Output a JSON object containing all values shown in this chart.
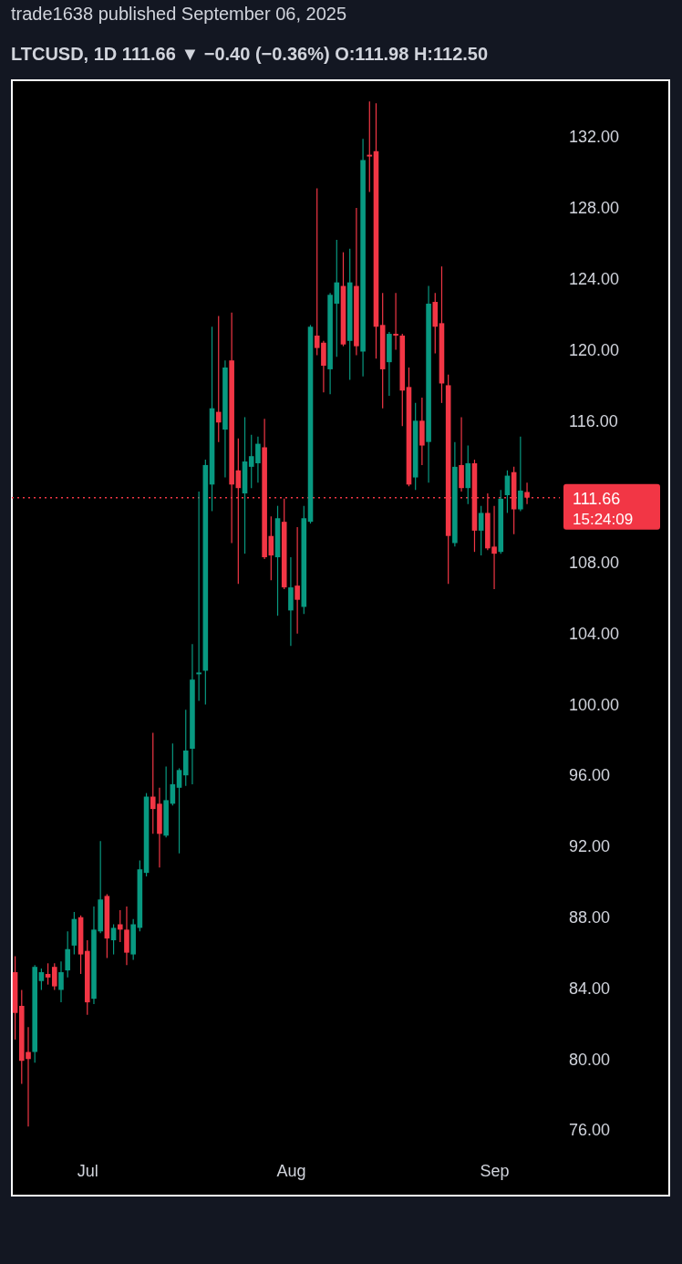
{
  "chart_data": {
    "type": "candlestick",
    "title": "trade1638 published September 06, 2025",
    "subtitle": "LTCUSD, 1D  111.66 ▼ −0.40 (−0.36%) O:111.98 H:112.50",
    "x": [
      "2025-06-20",
      "2025-06-21",
      "2025-06-22",
      "2025-06-23",
      "2025-06-24",
      "2025-06-25",
      "2025-06-26",
      "2025-06-27",
      "2025-06-28",
      "2025-06-29",
      "2025-06-30",
      "2025-07-01",
      "2025-07-02",
      "2025-07-03",
      "2025-07-04",
      "2025-07-05",
      "2025-07-06",
      "2025-07-07",
      "2025-07-08",
      "2025-07-09",
      "2025-07-10",
      "2025-07-11",
      "2025-07-12",
      "2025-07-13",
      "2025-07-14",
      "2025-07-15",
      "2025-07-16",
      "2025-07-17",
      "2025-07-18",
      "2025-07-19",
      "2025-07-20",
      "2025-07-21",
      "2025-07-22",
      "2025-07-23",
      "2025-07-24",
      "2025-07-25",
      "2025-07-26",
      "2025-07-27",
      "2025-07-28",
      "2025-07-29",
      "2025-07-30",
      "2025-07-31",
      "2025-08-01",
      "2025-08-02",
      "2025-08-03",
      "2025-08-04",
      "2025-08-05",
      "2025-08-06",
      "2025-08-07",
      "2025-08-08",
      "2025-08-09",
      "2025-08-10",
      "2025-08-11",
      "2025-08-12",
      "2025-08-13",
      "2025-08-14",
      "2025-08-15",
      "2025-08-16",
      "2025-08-17",
      "2025-08-18",
      "2025-08-19",
      "2025-08-20",
      "2025-08-21",
      "2025-08-22",
      "2025-08-23",
      "2025-08-24",
      "2025-08-25",
      "2025-08-26",
      "2025-08-27",
      "2025-08-28",
      "2025-08-29",
      "2025-08-30",
      "2025-08-31",
      "2025-09-01",
      "2025-09-02",
      "2025-09-03",
      "2025-09-04",
      "2025-09-05",
      "2025-09-06"
    ],
    "ohlc": [
      [
        84.9,
        85.8,
        81.1,
        82.6
      ],
      [
        83.0,
        83.9,
        78.6,
        79.9
      ],
      [
        80.4,
        81.8,
        76.2,
        80.0
      ],
      [
        80.4,
        85.3,
        79.8,
        85.2
      ],
      [
        84.4,
        85.1,
        83.9,
        84.9
      ],
      [
        84.8,
        85.4,
        84.2,
        84.6
      ],
      [
        85.2,
        85.4,
        83.9,
        84.1
      ],
      [
        83.9,
        85.5,
        83.2,
        84.9
      ],
      [
        85.0,
        87.2,
        84.6,
        86.2
      ],
      [
        86.4,
        88.3,
        85.9,
        87.9
      ],
      [
        88.0,
        88.1,
        84.8,
        85.9
      ],
      [
        86.1,
        86.7,
        82.5,
        83.2
      ],
      [
        83.4,
        88.6,
        83.1,
        87.3
      ],
      [
        87.2,
        92.3,
        87.1,
        89.0
      ],
      [
        89.2,
        89.3,
        85.7,
        86.8
      ],
      [
        86.7,
        87.6,
        85.9,
        87.4
      ],
      [
        87.6,
        88.4,
        86.6,
        87.3
      ],
      [
        87.3,
        88.6,
        85.3,
        86.0
      ],
      [
        85.9,
        87.9,
        85.6,
        87.6
      ],
      [
        87.4,
        91.2,
        87.2,
        90.7
      ],
      [
        90.5,
        95.0,
        90.3,
        94.8
      ],
      [
        94.8,
        98.4,
        92.7,
        94.1
      ],
      [
        94.4,
        95.3,
        90.8,
        92.7
      ],
      [
        92.6,
        96.5,
        92.5,
        94.6
      ],
      [
        94.4,
        97.8,
        94.3,
        95.5
      ],
      [
        95.3,
        96.4,
        91.6,
        96.3
      ],
      [
        96.0,
        99.7,
        95.4,
        97.4
      ],
      [
        97.5,
        103.4,
        95.5,
        101.4
      ],
      [
        101.7,
        112.0,
        100.2,
        101.8
      ],
      [
        101.9,
        113.8,
        100.0,
        113.5
      ],
      [
        112.4,
        121.3,
        110.9,
        116.7
      ],
      [
        116.5,
        121.9,
        114.8,
        115.9
      ],
      [
        115.5,
        119.4,
        112.8,
        119.0
      ],
      [
        119.4,
        122.1,
        109.1,
        112.4
      ],
      [
        113.2,
        115.0,
        106.8,
        112.2
      ],
      [
        111.9,
        116.2,
        108.5,
        113.7
      ],
      [
        113.4,
        115.2,
        112.2,
        114.0
      ],
      [
        113.6,
        115.1,
        112.5,
        114.7
      ],
      [
        114.5,
        116.1,
        108.2,
        108.3
      ],
      [
        109.5,
        110.6,
        107.0,
        108.4
      ],
      [
        108.3,
        111.2,
        105.0,
        110.5
      ],
      [
        110.3,
        111.6,
        106.5,
        106.6
      ],
      [
        105.3,
        108.3,
        103.3,
        106.6
      ],
      [
        106.7,
        110.0,
        104.0,
        105.9
      ],
      [
        105.5,
        111.2,
        105.1,
        110.5
      ],
      [
        110.3,
        121.4,
        110.2,
        121.3
      ],
      [
        120.8,
        129.1,
        119.7,
        120.1
      ],
      [
        120.4,
        120.5,
        117.6,
        119.1
      ],
      [
        118.9,
        123.2,
        117.5,
        123.1
      ],
      [
        122.6,
        126.2,
        119.6,
        123.8
      ],
      [
        123.6,
        125.5,
        120.2,
        120.3
      ],
      [
        120.5,
        125.7,
        118.3,
        123.8
      ],
      [
        123.6,
        128.0,
        119.7,
        120.2
      ],
      [
        119.9,
        131.9,
        118.5,
        130.7
      ],
      [
        131.0,
        134.0,
        128.9,
        130.9
      ],
      [
        131.2,
        133.9,
        119.5,
        121.3
      ],
      [
        121.4,
        123.2,
        116.7,
        118.9
      ],
      [
        119.3,
        121.0,
        117.4,
        120.9
      ],
      [
        120.9,
        123.2,
        120.0,
        120.8
      ],
      [
        120.8,
        120.9,
        115.7,
        117.7
      ],
      [
        117.9,
        119.0,
        112.3,
        112.4
      ],
      [
        112.8,
        117.0,
        112.1,
        116.0
      ],
      [
        116.0,
        117.3,
        113.5,
        114.6
      ],
      [
        114.8,
        123.6,
        112.5,
        122.6
      ],
      [
        122.7,
        123.2,
        119.8,
        121.3
      ],
      [
        121.5,
        124.7,
        117.0,
        118.1
      ],
      [
        118.0,
        118.6,
        106.8,
        109.5
      ],
      [
        109.1,
        114.8,
        108.9,
        113.4
      ],
      [
        113.5,
        116.2,
        112.0,
        112.2
      ],
      [
        112.2,
        114.6,
        111.3,
        113.6
      ],
      [
        113.6,
        113.8,
        108.6,
        109.8
      ],
      [
        109.8,
        111.2,
        108.4,
        110.8
      ],
      [
        110.8,
        111.9,
        108.7,
        108.8
      ],
      [
        108.9,
        111.2,
        106.5,
        108.5
      ],
      [
        108.6,
        112.1,
        108.5,
        111.6
      ],
      [
        111.8,
        113.2,
        110.8,
        112.9
      ],
      [
        113.1,
        113.4,
        109.6,
        111.0
      ],
      [
        111.0,
        115.1,
        110.9,
        112.06
      ],
      [
        111.98,
        112.5,
        111.3,
        111.66
      ]
    ],
    "colors": [
      "#f23645",
      "#f23645",
      "#f23645",
      "#089981",
      "#089981",
      "#f23645",
      "#f23645",
      "#089981",
      "#089981",
      "#089981",
      "#f23645",
      "#f23645",
      "#089981",
      "#089981",
      "#f23645",
      "#089981",
      "#f23645",
      "#f23645",
      "#089981",
      "#089981",
      "#089981",
      "#f23645",
      "#f23645",
      "#089981",
      "#089981",
      "#089981",
      "#089981",
      "#089981",
      "#089981",
      "#089981",
      "#089981",
      "#f23645",
      "#089981",
      "#f23645",
      "#f23645",
      "#089981",
      "#089981",
      "#089981",
      "#f23645",
      "#f23645",
      "#089981",
      "#f23645",
      "#089981",
      "#f23645",
      "#089981",
      "#089981",
      "#f23645",
      "#f23645",
      "#089981",
      "#089981",
      "#f23645",
      "#089981",
      "#f23645",
      "#089981",
      "#f23645",
      "#f23645",
      "#f23645",
      "#089981",
      "#f23645",
      "#f23645",
      "#f23645",
      "#089981",
      "#f23645",
      "#089981",
      "#f23645",
      "#f23645",
      "#f23645",
      "#089981",
      "#f23645",
      "#089981",
      "#f23645",
      "#089981",
      "#f23645",
      "#f23645",
      "#089981",
      "#089981",
      "#f23645",
      "#089981",
      "#f23645"
    ],
    "xlim": [
      "2025-06-19T12:00",
      "2025-09-27T16:00"
    ],
    "xticks": [
      {
        "value": "2025-07-01",
        "label": "Jul"
      },
      {
        "value": "2025-08-01",
        "label": "Aug"
      },
      {
        "value": "2025-09-01",
        "label": "Sep"
      }
    ],
    "ylim": [
      72.3,
      135.2
    ],
    "yticks": [
      {
        "value": 76,
        "label": "76.00"
      },
      {
        "value": 80,
        "label": "80.00"
      },
      {
        "value": 84,
        "label": "84.00"
      },
      {
        "value": 88,
        "label": "88.00"
      },
      {
        "value": 92,
        "label": "92.00"
      },
      {
        "value": 96,
        "label": "96.00"
      },
      {
        "value": 100,
        "label": "100.00"
      },
      {
        "value": 104,
        "label": "104.00"
      },
      {
        "value": 108,
        "label": "108.00"
      },
      {
        "value": 116,
        "label": "116.00"
      },
      {
        "value": 120,
        "label": "120.00"
      },
      {
        "value": 124,
        "label": "124.00"
      },
      {
        "value": 128,
        "label": "128.00"
      },
      {
        "value": 132,
        "label": "132.00"
      }
    ],
    "grid": false,
    "ref_lines": [
      {
        "axis": "y",
        "value": 111.66,
        "label": "111.66",
        "color": "#f23645",
        "line_style": "dotted"
      }
    ],
    "annotations": [
      "15:24:09"
    ]
  }
}
